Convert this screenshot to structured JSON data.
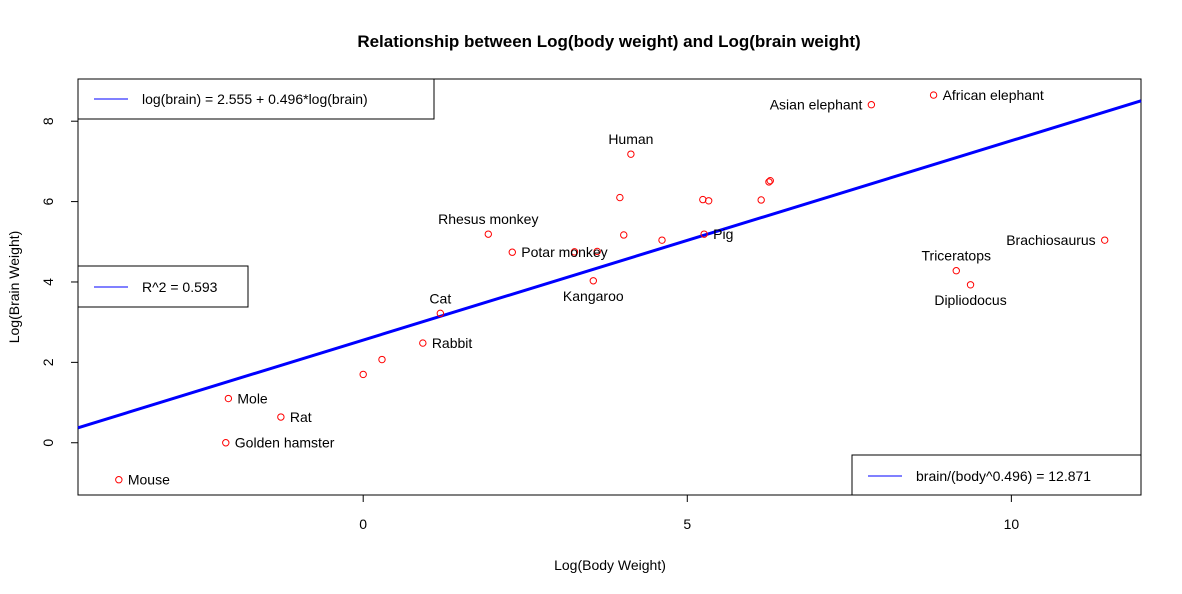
{
  "chart_data": {
    "type": "scatter",
    "title": "Relationship between Log(body weight) and Log(brain weight)",
    "xlabel": "Log(Body Weight)",
    "ylabel": "Log(Brain Weight)",
    "xlim": [
      -4.4,
      12.0
    ],
    "ylim": [
      -1.3,
      9.05
    ],
    "xticks": [
      0,
      5,
      10
    ],
    "yticks": [
      0,
      2,
      4,
      6,
      8
    ],
    "grid": false,
    "point_color": "#ff0000",
    "line_color": "#0000ff",
    "regression": {
      "intercept": 2.555,
      "slope": 0.496
    },
    "points": [
      {
        "name": "Mouse",
        "x": -3.77,
        "y": -0.92
      },
      {
        "name": "Golden hamster",
        "x": -2.12,
        "y": 0.0
      },
      {
        "name": "Mole",
        "x": -2.08,
        "y": 1.1
      },
      {
        "name": "Rat",
        "x": -1.27,
        "y": 0.64
      },
      {
        "name": "Rabbit",
        "x": 0.92,
        "y": 2.48
      },
      {
        "name": "Cat",
        "x": 1.19,
        "y": 3.22
      },
      {
        "name": "Rhesus monkey",
        "x": 1.93,
        "y": 5.19
      },
      {
        "name": "Potar monkey",
        "x": 2.3,
        "y": 4.74
      },
      {
        "name": "Kangaroo",
        "x": 3.55,
        "y": 4.03
      },
      {
        "name": "Pig",
        "x": 5.26,
        "y": 5.19
      },
      {
        "name": "Human",
        "x": 4.13,
        "y": 7.18
      },
      {
        "name": "Asian elephant",
        "x": 7.84,
        "y": 8.41
      },
      {
        "name": "African elephant",
        "x": 8.8,
        "y": 8.65
      },
      {
        "name": "Brachiosaurus",
        "x": 11.44,
        "y": 5.04
      },
      {
        "name": "Triceratops",
        "x": 9.15,
        "y": 4.28
      },
      {
        "name": "Dipliodocus",
        "x": 9.37,
        "y": 3.93
      },
      {
        "name": "",
        "x": 0.0,
        "y": 1.7
      },
      {
        "name": "",
        "x": 0.29,
        "y": 2.07
      },
      {
        "name": "",
        "x": 3.26,
        "y": 4.75
      },
      {
        "name": "",
        "x": 3.61,
        "y": 4.76
      },
      {
        "name": "",
        "x": 3.96,
        "y": 6.1
      },
      {
        "name": "",
        "x": 4.02,
        "y": 5.17
      },
      {
        "name": "",
        "x": 4.61,
        "y": 5.04
      },
      {
        "name": "",
        "x": 5.24,
        "y": 6.05
      },
      {
        "name": "",
        "x": 5.33,
        "y": 6.02
      },
      {
        "name": "",
        "x": 6.14,
        "y": 6.04
      },
      {
        "name": "",
        "x": 6.26,
        "y": 6.49
      },
      {
        "name": "",
        "x": 6.28,
        "y": 6.52
      }
    ],
    "legends": [
      {
        "id": "equation",
        "text": "log(brain) = 2.555 + 0.496*log(brain)",
        "placement": "top-left"
      },
      {
        "id": "r2",
        "text": "R^2 =  0.593",
        "placement": "left"
      },
      {
        "id": "ratio",
        "text": "brain/(body^0.496) = 12.871",
        "placement": "bottom-right"
      }
    ]
  }
}
